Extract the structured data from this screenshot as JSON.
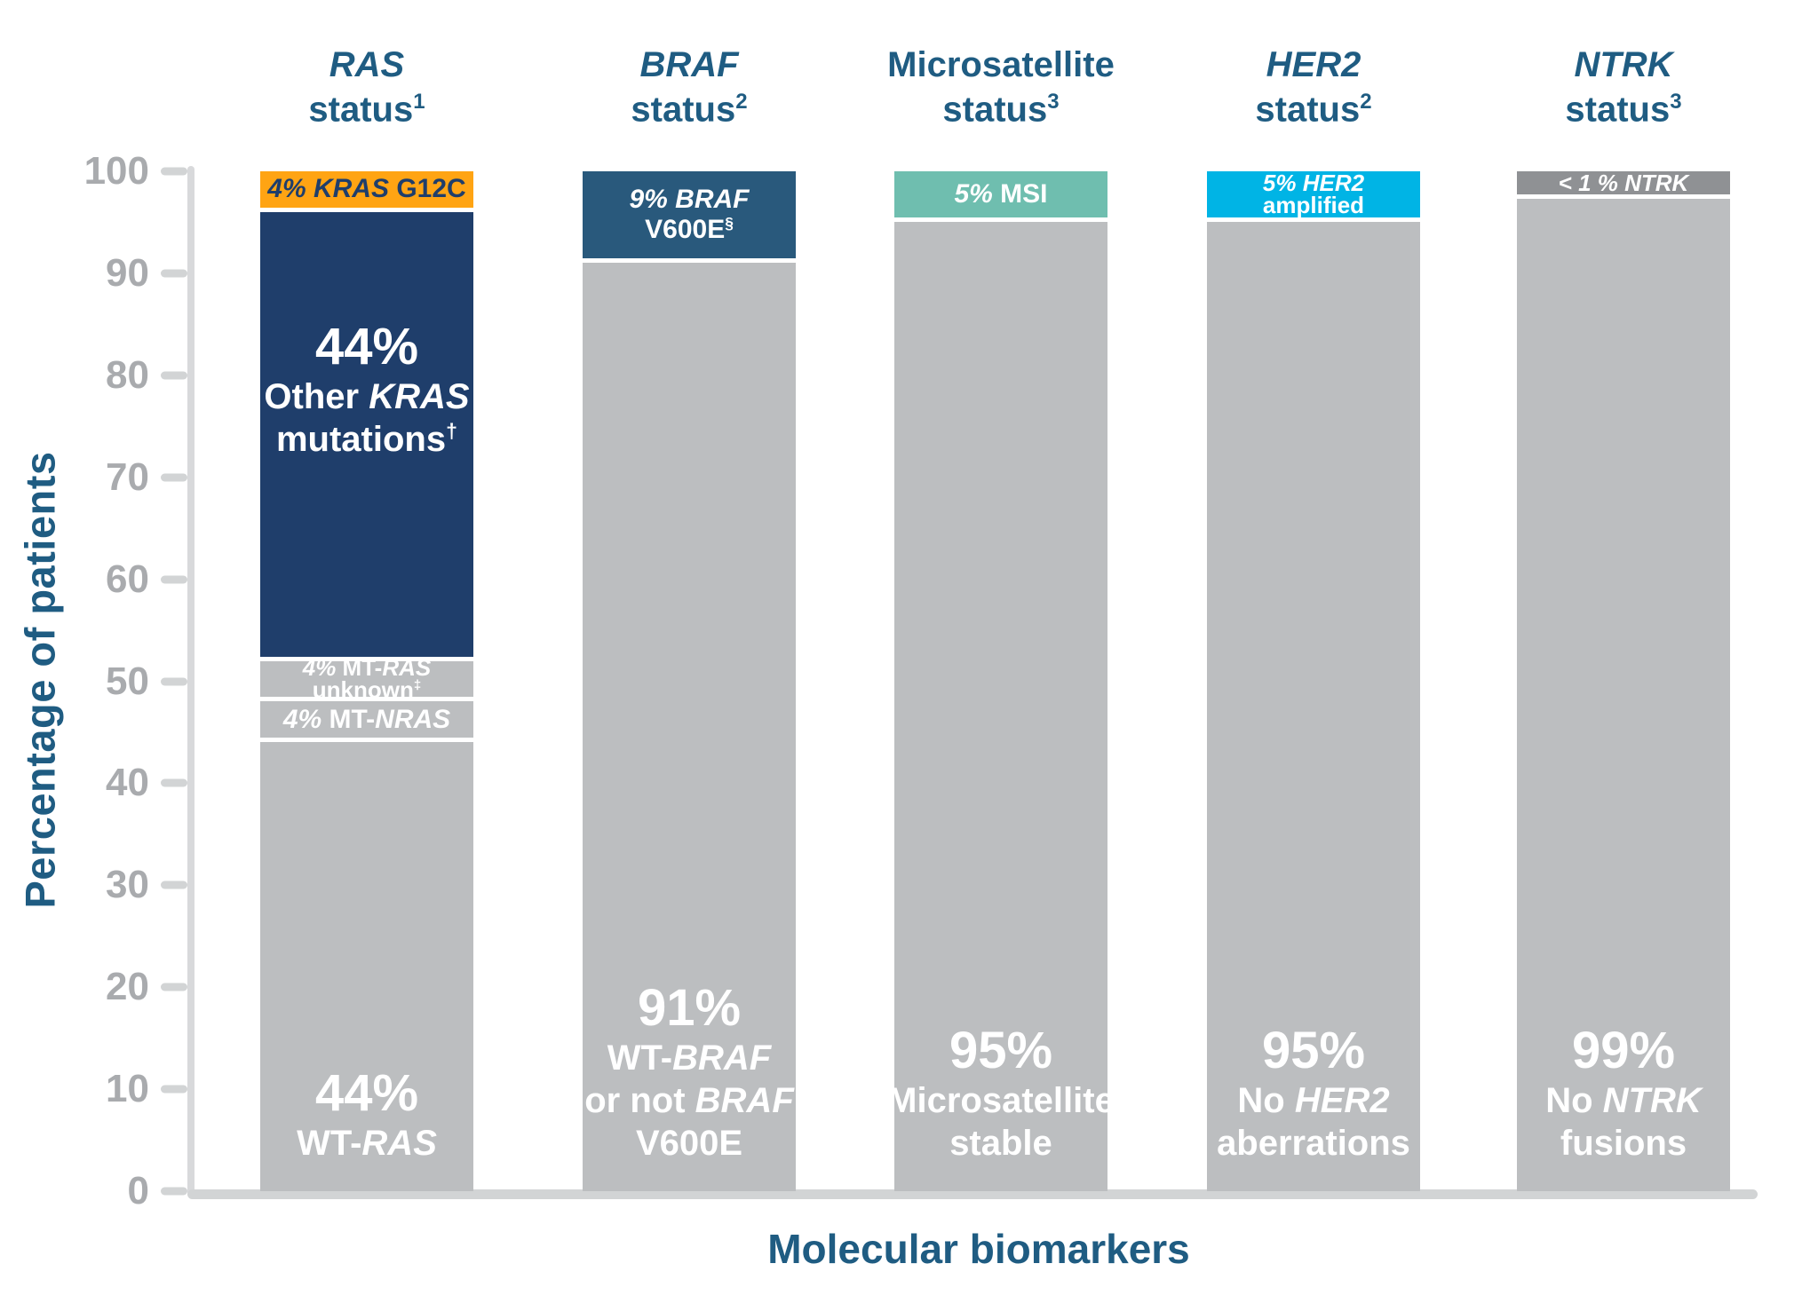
{
  "colors": {
    "header_blue": "#1F5C82",
    "navy": "#1F3E6B",
    "orange": "#FFA413",
    "steel": "#29597C",
    "teal": "#6FBEAF",
    "cyan": "#00B4E5",
    "darkgray": "#8F9194",
    "gray": "#BCBEC0",
    "axis_gray": "#D2D4D5",
    "axis_line_gray": "#D8D9DB",
    "tick_label_gray": "#A9ABAE",
    "white": "#FFFFFF"
  },
  "chart_data": {
    "type": "bar",
    "stacked": true,
    "title": "",
    "xlabel": "Molecular biomarkers",
    "ylabel": "Percentage of patients",
    "ylim": [
      0,
      100
    ],
    "yticks": [
      0,
      10,
      20,
      30,
      40,
      50,
      60,
      70,
      80,
      90,
      100
    ],
    "grid": false,
    "legend": "none",
    "categories": [
      "RAS status",
      "BRAF status",
      "Microsatellite status",
      "HER2 status",
      "NTRK status"
    ],
    "bars": [
      {
        "header_lines": [
          "*RAS*",
          "status^1^"
        ],
        "segments": [
          {
            "pct": 4,
            "value_text": "4%",
            "color": "orange",
            "text_color": "navy",
            "style": "small",
            "lines": [
              "*4% KRAS* G12C"
            ]
          },
          {
            "pct": 44,
            "value_text": "44%",
            "color": "navy",
            "text_color": "white",
            "style": "center",
            "big": "44%",
            "lines": [
              "Other *KRAS*",
              "mutations^†^"
            ]
          },
          {
            "pct": 4,
            "value_text": "4%",
            "color": "gray",
            "text_color": "white",
            "style": "tiny",
            "lines": [
              "*4%* MT-*RAS*",
              "unknown^‡^"
            ]
          },
          {
            "pct": 4,
            "value_text": "4%",
            "color": "gray",
            "text_color": "white",
            "style": "small",
            "lines": [
              "*4%* MT-*NRAS*"
            ]
          },
          {
            "pct": 44,
            "value_text": "44%",
            "color": "gray",
            "text_color": "white",
            "style": "bottom",
            "big": "44%",
            "lines": [
              "WT-*RAS*"
            ]
          }
        ]
      },
      {
        "header_lines": [
          "*BRAF*",
          "status^2^"
        ],
        "segments": [
          {
            "pct": 9,
            "value_text": "9%",
            "color": "steel",
            "text_color": "white",
            "style": "small",
            "lines": [
              "*9% BRAF*",
              "V600E^§^"
            ]
          },
          {
            "pct": 91,
            "value_text": "91%",
            "color": "gray",
            "text_color": "white",
            "style": "bottom",
            "big": "91%",
            "lines": [
              "WT-*BRAF*",
              "or not *BRAF*",
              "V600E"
            ]
          }
        ]
      },
      {
        "header_lines": [
          "Microsatellite",
          "status^3^"
        ],
        "segments": [
          {
            "pct": 5,
            "value_text": "5%",
            "color": "teal",
            "text_color": "white",
            "style": "small",
            "lines": [
              "*5%* MSI"
            ]
          },
          {
            "pct": 95,
            "value_text": "95%",
            "color": "gray",
            "text_color": "white",
            "style": "bottom",
            "big": "95%",
            "lines": [
              "Microsatellite",
              "stable"
            ]
          }
        ]
      },
      {
        "header_lines": [
          "*HER2*",
          "status^2^"
        ],
        "segments": [
          {
            "pct": 5,
            "value_text": "5%",
            "color": "cyan",
            "text_color": "white",
            "style": "tiny",
            "lines": [
              "*5% HER2*",
              "amplified"
            ]
          },
          {
            "pct": 95,
            "value_text": "95%",
            "color": "gray",
            "text_color": "white",
            "style": "bottom",
            "big": "95%",
            "lines": [
              "No *HER2*",
              "aberrations"
            ]
          }
        ]
      },
      {
        "header_lines": [
          "*NTRK*",
          "status^3^"
        ],
        "segments": [
          {
            "pct": 1,
            "value_text": "<1%",
            "display_pct": 2.7,
            "color": "darkgray",
            "text_color": "white",
            "style": "tiny",
            "lines": [
              "*< 1 % NTRK*"
            ]
          },
          {
            "pct": 99,
            "value_text": "99%",
            "display_pct": 97.3,
            "color": "gray",
            "text_color": "white",
            "style": "bottom",
            "big": "99%",
            "lines": [
              "No *NTRK*",
              "fusions"
            ]
          }
        ]
      }
    ]
  }
}
